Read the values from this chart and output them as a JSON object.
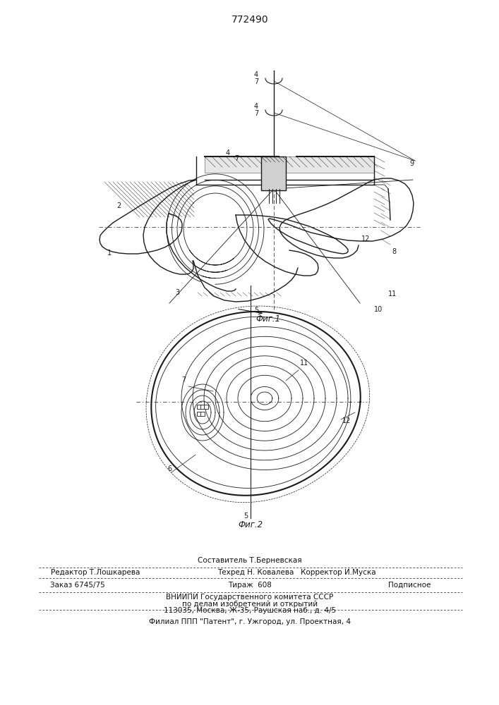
{
  "patent_number": "772490",
  "bg": "#ffffff",
  "lc": "#1a1a1a",
  "fig1_caption": "Фиг.1",
  "fig2_caption": "Фиг.2",
  "footer": {
    "line_sestavitel": "Составитель Т.Берневская",
    "line_redaktor": "Редактор Т.Лошкарева",
    "line_tekhred": "Техред Н. Ковалева   Корректор И.Муска",
    "line_zakaz_left": "Заказ 6745/75",
    "line_zakaz_center": "Тираж  608",
    "line_zakaz_right": "Подписное",
    "line_vniip1": "ВНИИПИ Государственного комитета СССР",
    "line_vniip2": "по делам изобретений и открытий",
    "line_vniip3": "113035, Москва, Ж-35, Раушская наб., д. 4/5",
    "line_filial": "Филиал ППП \"Патент\", г. Ужгород, ул. Проектная, 4"
  }
}
